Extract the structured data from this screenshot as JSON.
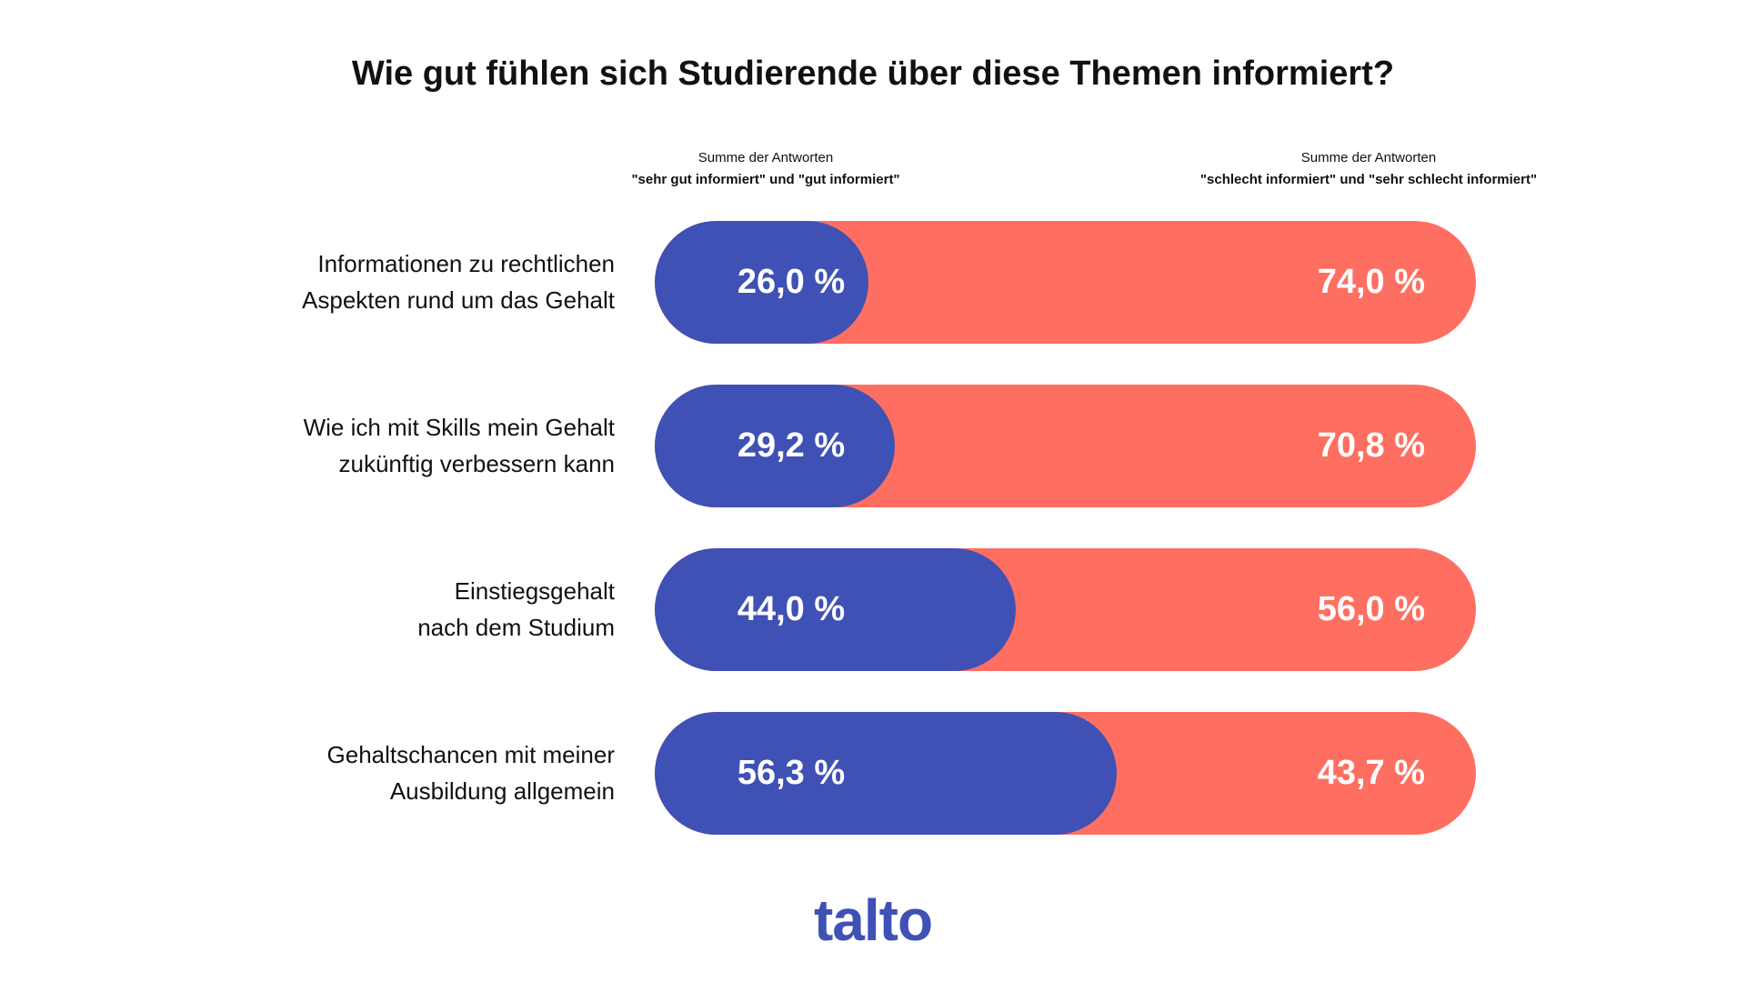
{
  "chart_data": {
    "type": "bar",
    "stacked": true,
    "orientation": "horizontal",
    "title": "Wie gut fühlen sich Studierende über diese Themen informiert?",
    "categories": [
      [
        "Informationen zu rechtlichen",
        "Aspekten rund um das Gehalt"
      ],
      [
        "Wie ich mit Skills mein Gehalt",
        "zukünftig verbessern kann"
      ],
      [
        "Einstiegsgehalt",
        "nach dem Studium"
      ],
      [
        "Gehaltschancen mit meiner",
        "Ausbildung allgemein"
      ]
    ],
    "series": [
      {
        "name": "Summe der Antworten \"sehr gut informiert\" und \"gut informiert\"",
        "header_line1": "Summe der Antworten",
        "header_line2": "\"sehr gut informiert\" und \"gut informiert\"",
        "color": "#3f51b5",
        "values": [
          26.0,
          29.2,
          44.0,
          56.3
        ],
        "labels": [
          "26,0 %",
          "29,2 %",
          "44,0 %",
          "56,3 %"
        ]
      },
      {
        "name": "Summe der Antworten \"schlecht informiert\" und \"sehr schlecht informiert\"",
        "header_line1": "Summe der Antworten",
        "header_line2": "\"schlecht informiert\" und \"sehr schlecht informiert\"",
        "color": "#ff6f61",
        "values": [
          74.0,
          70.8,
          56.0,
          43.7
        ],
        "labels": [
          "74,0 %",
          "70,8 %",
          "56,0 %",
          "43,7 %"
        ]
      }
    ],
    "xlim": [
      0,
      100
    ],
    "grid": false
  },
  "logo": "talto"
}
